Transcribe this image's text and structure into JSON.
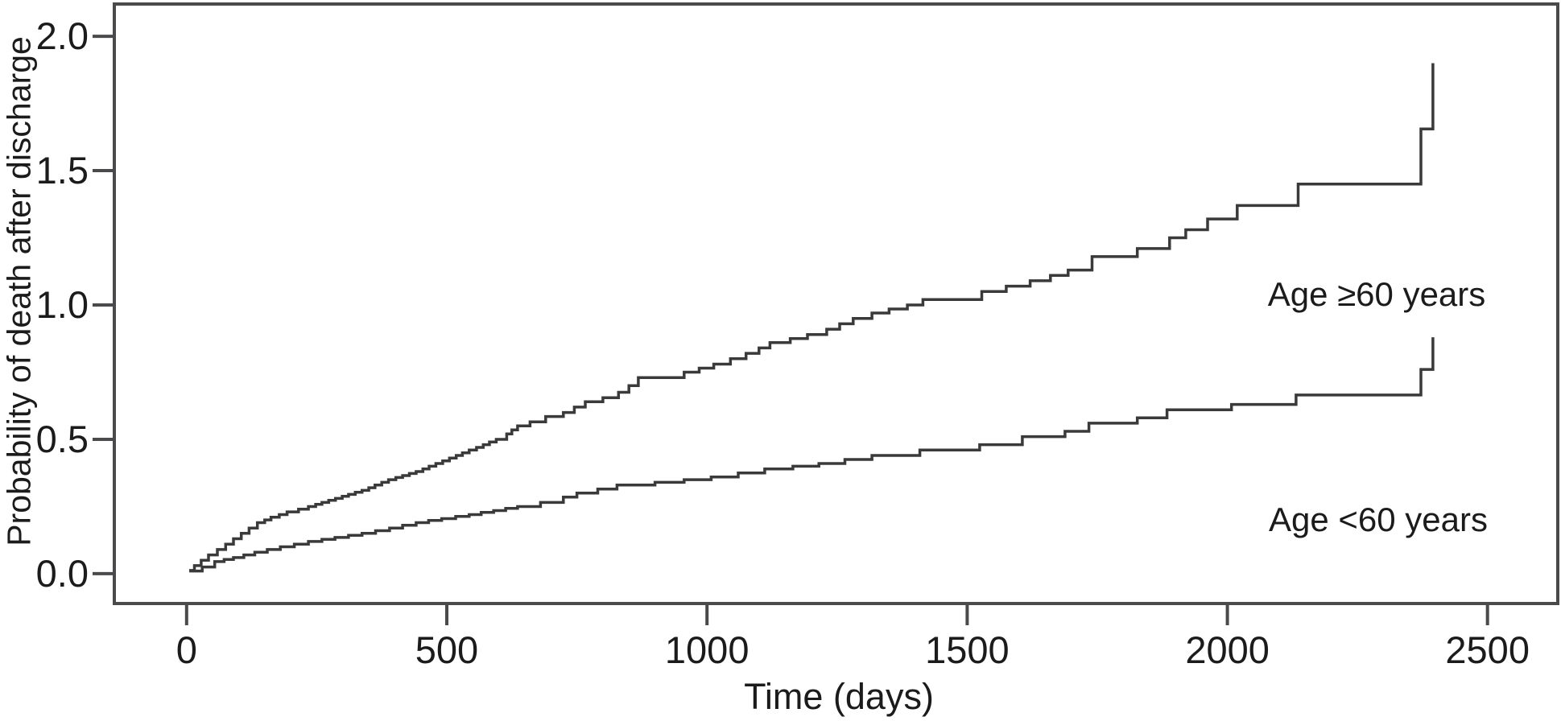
{
  "chart_data": {
    "type": "line",
    "subtype": "step-after",
    "title": "",
    "xlabel": "Time (days)",
    "ylabel": "Probability of death after discharge",
    "grid": false,
    "legend_position": "annotated-on-plot",
    "xlim": [
      -139,
      2635
    ],
    "ylim": [
      -0.111,
      2.12
    ],
    "x_ticks": {
      "values": [
        0,
        500,
        1000,
        1500,
        2000,
        2500
      ],
      "labels": [
        "0",
        "500",
        "1000",
        "1500",
        "2000",
        "2500"
      ]
    },
    "y_ticks": {
      "values": [
        0.0,
        0.5,
        1.0,
        1.5,
        2.0
      ],
      "labels": [
        "0.0",
        "0.5",
        "1.0",
        "1.5",
        "2.0"
      ]
    },
    "series": [
      {
        "name": "Age ≥60 years",
        "points": [
          [
            5,
            0.012
          ],
          [
            15,
            0.03
          ],
          [
            28,
            0.05
          ],
          [
            42,
            0.07
          ],
          [
            59,
            0.09
          ],
          [
            75,
            0.11
          ],
          [
            90,
            0.13
          ],
          [
            105,
            0.15
          ],
          [
            120,
            0.17
          ],
          [
            136,
            0.19
          ],
          [
            150,
            0.2
          ],
          [
            162,
            0.21
          ],
          [
            178,
            0.22
          ],
          [
            193,
            0.23
          ],
          [
            215,
            0.24
          ],
          [
            234,
            0.25
          ],
          [
            248,
            0.258
          ],
          [
            260,
            0.265
          ],
          [
            273,
            0.273
          ],
          [
            286,
            0.28
          ],
          [
            299,
            0.288
          ],
          [
            311,
            0.295
          ],
          [
            324,
            0.303
          ],
          [
            337,
            0.31
          ],
          [
            350,
            0.32
          ],
          [
            362,
            0.33
          ],
          [
            375,
            0.34
          ],
          [
            388,
            0.35
          ],
          [
            402,
            0.358
          ],
          [
            415,
            0.365
          ],
          [
            428,
            0.373
          ],
          [
            441,
            0.38
          ],
          [
            454,
            0.39
          ],
          [
            466,
            0.4
          ],
          [
            479,
            0.41
          ],
          [
            492,
            0.42
          ],
          [
            505,
            0.43
          ],
          [
            518,
            0.44
          ],
          [
            530,
            0.45
          ],
          [
            543,
            0.46
          ],
          [
            557,
            0.47
          ],
          [
            570,
            0.48
          ],
          [
            582,
            0.49
          ],
          [
            595,
            0.5
          ],
          [
            615,
            0.52
          ],
          [
            625,
            0.535
          ],
          [
            636,
            0.55
          ],
          [
            660,
            0.565
          ],
          [
            690,
            0.585
          ],
          [
            724,
            0.6
          ],
          [
            745,
            0.62
          ],
          [
            766,
            0.64
          ],
          [
            800,
            0.655
          ],
          [
            830,
            0.675
          ],
          [
            850,
            0.7
          ],
          [
            868,
            0.73
          ],
          [
            956,
            0.75
          ],
          [
            985,
            0.765
          ],
          [
            1013,
            0.78
          ],
          [
            1045,
            0.8
          ],
          [
            1075,
            0.82
          ],
          [
            1100,
            0.84
          ],
          [
            1121,
            0.86
          ],
          [
            1160,
            0.875
          ],
          [
            1193,
            0.89
          ],
          [
            1230,
            0.91
          ],
          [
            1255,
            0.93
          ],
          [
            1281,
            0.95
          ],
          [
            1317,
            0.97
          ],
          [
            1350,
            0.985
          ],
          [
            1385,
            1.0
          ],
          [
            1415,
            1.02
          ],
          [
            1528,
            1.05
          ],
          [
            1575,
            1.07
          ],
          [
            1621,
            1.09
          ],
          [
            1660,
            1.11
          ],
          [
            1694,
            1.13
          ],
          [
            1740,
            1.18
          ],
          [
            1827,
            1.21
          ],
          [
            1889,
            1.25
          ],
          [
            1920,
            1.28
          ],
          [
            1962,
            1.32
          ],
          [
            2019,
            1.37
          ],
          [
            2136,
            1.45
          ],
          [
            2372,
            1.655
          ],
          [
            2395,
            1.9
          ]
        ]
      },
      {
        "name": "Age <60 years",
        "points": [
          [
            5,
            0.01
          ],
          [
            30,
            0.025
          ],
          [
            54,
            0.045
          ],
          [
            72,
            0.053
          ],
          [
            90,
            0.06
          ],
          [
            110,
            0.07
          ],
          [
            131,
            0.08
          ],
          [
            155,
            0.09
          ],
          [
            180,
            0.1
          ],
          [
            207,
            0.11
          ],
          [
            234,
            0.12
          ],
          [
            260,
            0.128
          ],
          [
            285,
            0.135
          ],
          [
            311,
            0.143
          ],
          [
            337,
            0.15
          ],
          [
            363,
            0.16
          ],
          [
            390,
            0.17
          ],
          [
            415,
            0.18
          ],
          [
            441,
            0.19
          ],
          [
            465,
            0.198
          ],
          [
            490,
            0.205
          ],
          [
            517,
            0.213
          ],
          [
            543,
            0.22
          ],
          [
            566,
            0.228
          ],
          [
            590,
            0.235
          ],
          [
            613,
            0.243
          ],
          [
            636,
            0.25
          ],
          [
            680,
            0.265
          ],
          [
            724,
            0.285
          ],
          [
            750,
            0.3
          ],
          [
            790,
            0.315
          ],
          [
            827,
            0.33
          ],
          [
            900,
            0.34
          ],
          [
            956,
            0.35
          ],
          [
            1008,
            0.36
          ],
          [
            1060,
            0.375
          ],
          [
            1111,
            0.39
          ],
          [
            1165,
            0.4
          ],
          [
            1215,
            0.41
          ],
          [
            1265,
            0.425
          ],
          [
            1317,
            0.44
          ],
          [
            1409,
            0.46
          ],
          [
            1524,
            0.48
          ],
          [
            1606,
            0.51
          ],
          [
            1688,
            0.53
          ],
          [
            1734,
            0.56
          ],
          [
            1827,
            0.58
          ],
          [
            1884,
            0.61
          ],
          [
            2008,
            0.63
          ],
          [
            2132,
            0.665
          ],
          [
            2372,
            0.76
          ],
          [
            2395,
            0.88
          ]
        ]
      }
    ],
    "annotations": [
      {
        "text": "Age ≥60 years",
        "t": 2287,
        "v": 1.038
      },
      {
        "text": "Age <60 years",
        "t": 2290,
        "v": 0.2
      }
    ],
    "colors": {
      "curve": "#3a3a3a",
      "frame": "#4a4a4c",
      "tick": "#4a4a4c",
      "text": "#1b1b1b",
      "background": "#ffffff"
    }
  }
}
